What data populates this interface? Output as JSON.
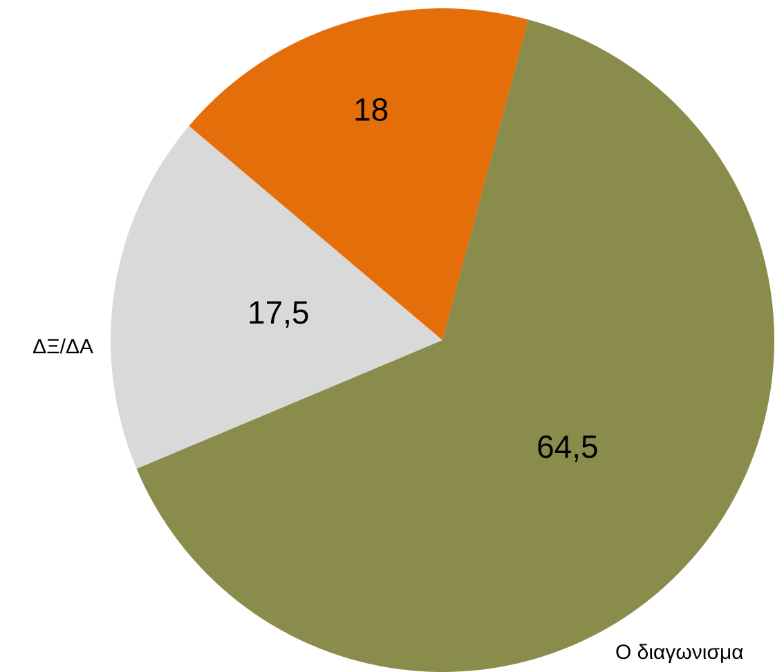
{
  "chart_data": {
    "type": "pie",
    "categories": [
      "Ο διαγωνισμα",
      "ΔΞ/ΔΑ",
      null
    ],
    "values": [
      64.5,
      17.5,
      18
    ],
    "value_labels": [
      "64,5",
      "17,5",
      "18"
    ],
    "colors": [
      "#8a8c4c",
      "#d9d9d9",
      "#e46f0a"
    ]
  }
}
